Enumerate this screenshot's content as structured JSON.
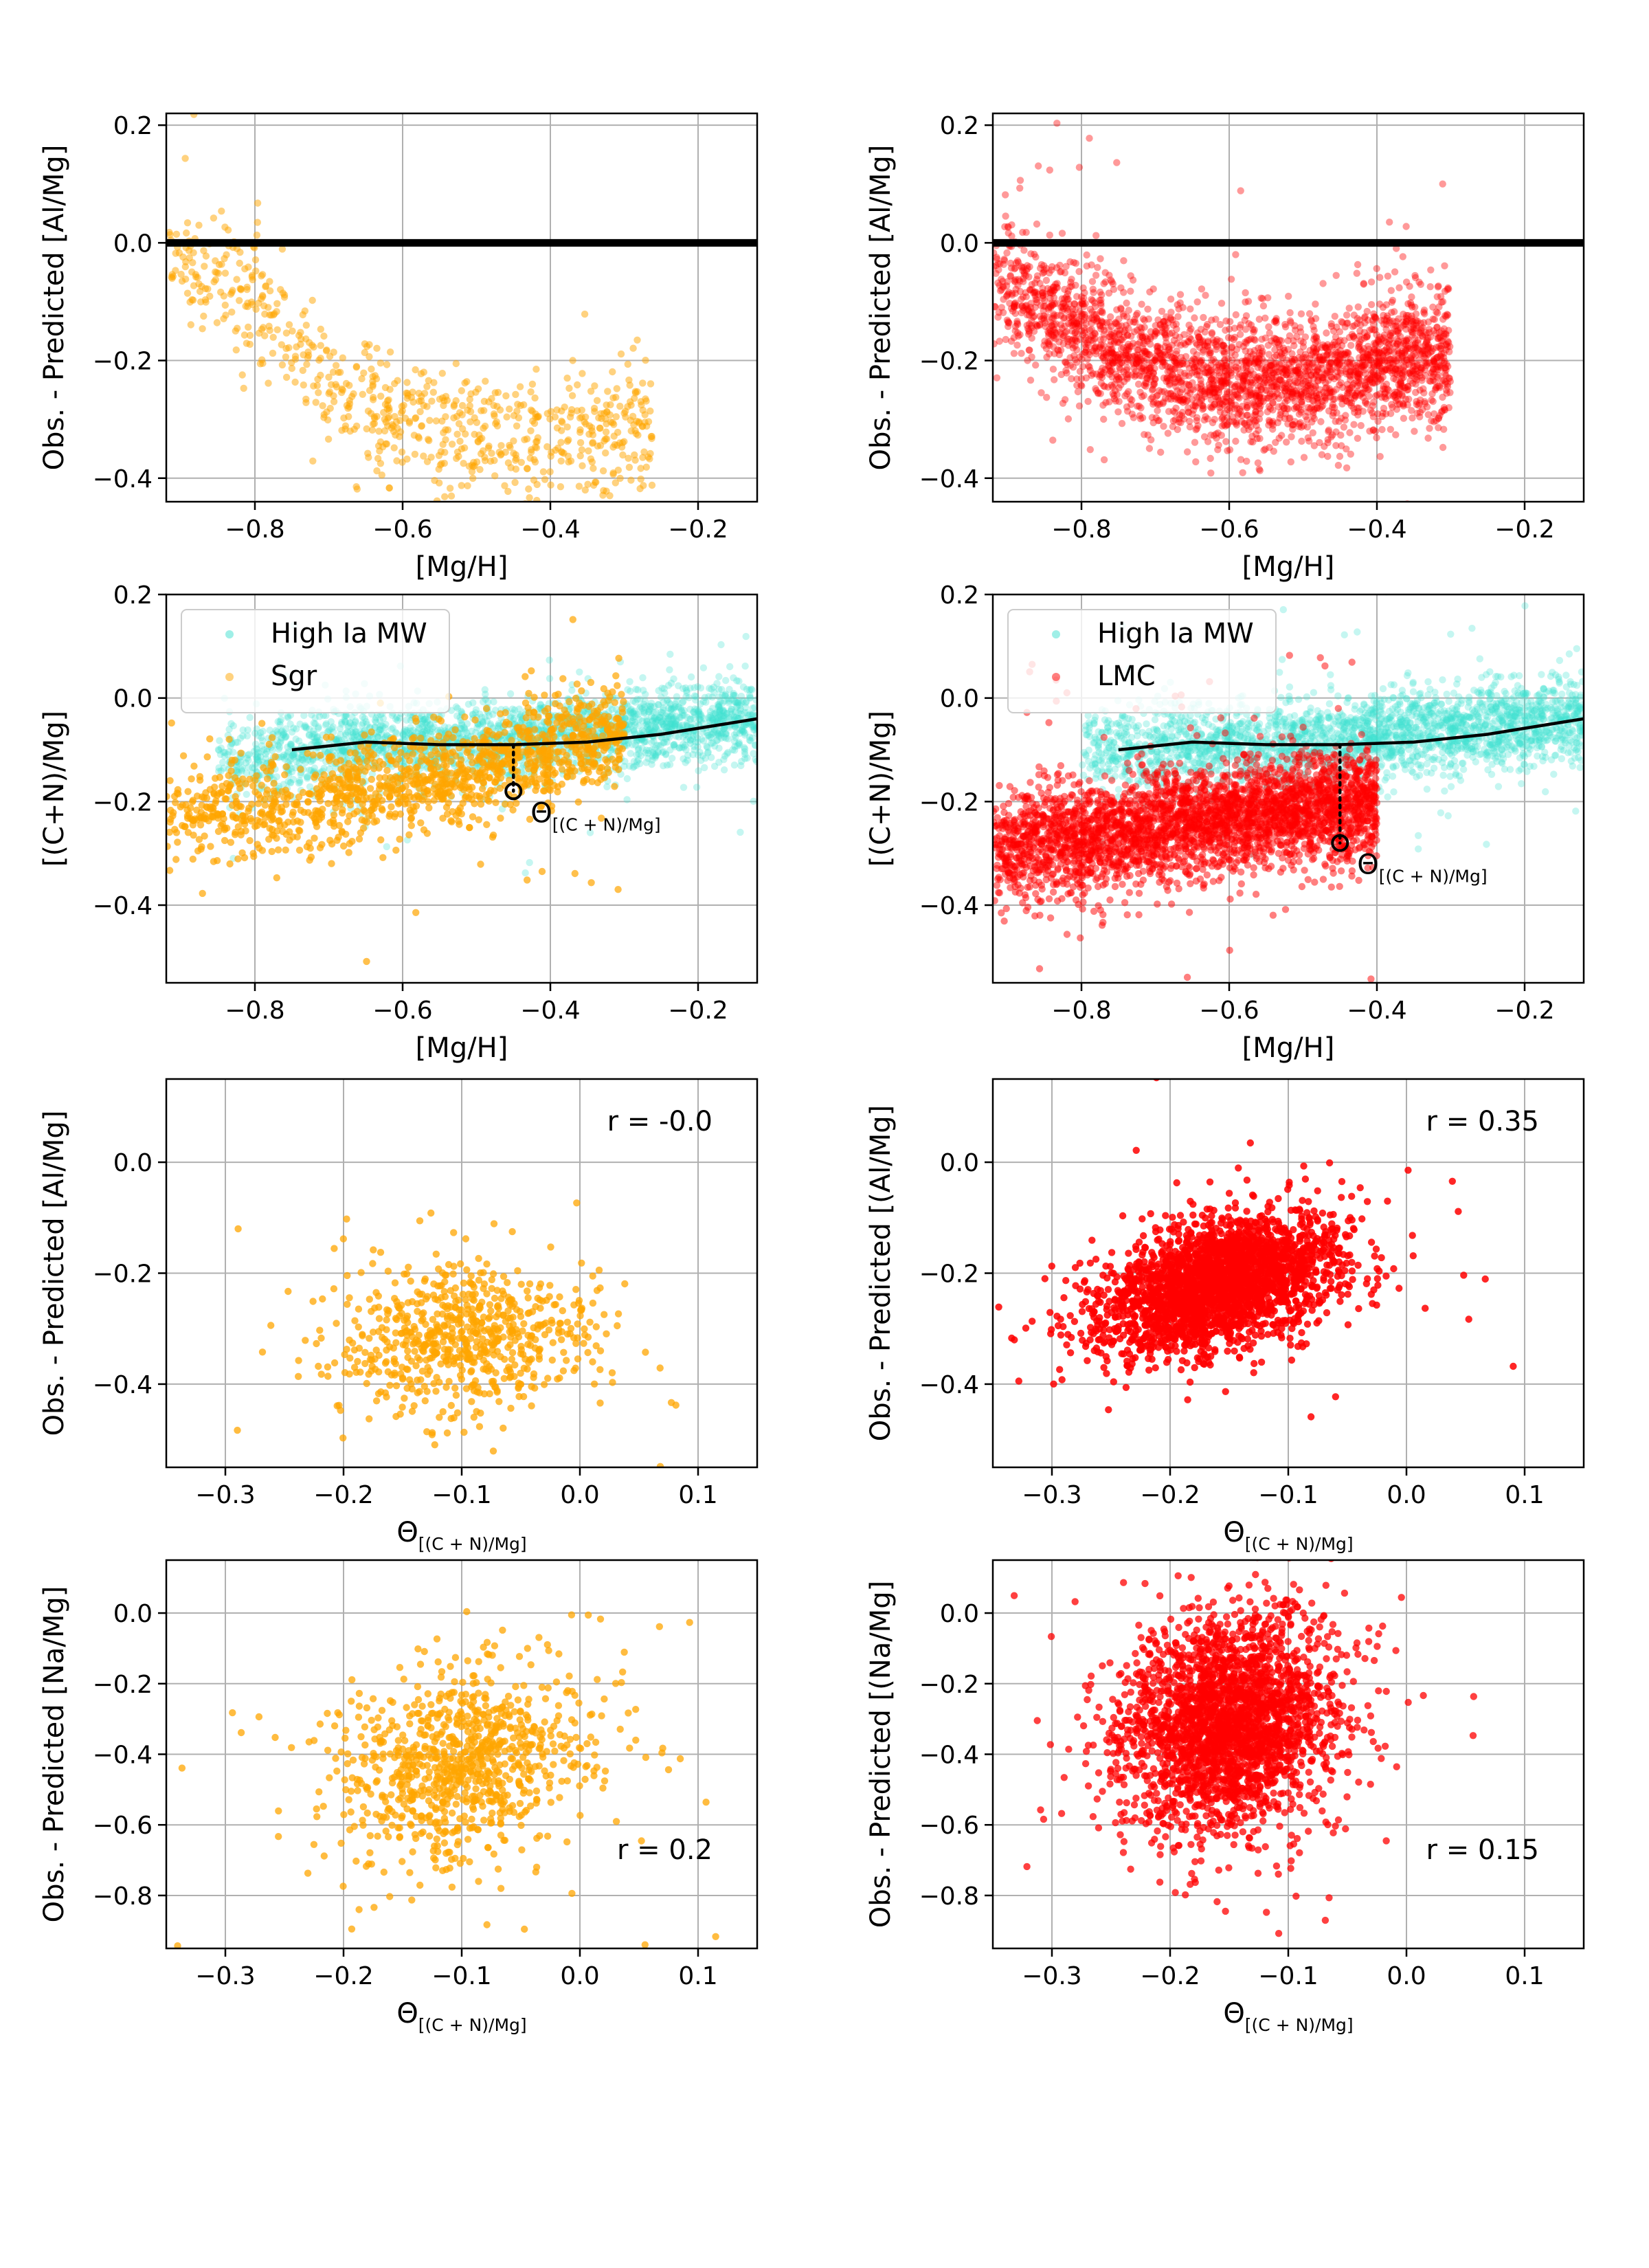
{
  "figure": {
    "rows": 4,
    "cols": 2
  },
  "colors": {
    "sgr": "#ffa500",
    "lmc": "#ff0000",
    "mw": "#40e0d0",
    "trend": "#000000",
    "grid": "#b0b0b0"
  },
  "symbols": {
    "theta": "Θ",
    "theta_sub": "[(C + N)/Mg]"
  },
  "chart_data": [
    {
      "id": "al-vs-mgh-sgr",
      "type": "scatter",
      "xlabel": "[Mg/H]",
      "ylabel": "Obs. - Predicted  [Al/Mg]",
      "xlim": [
        -0.92,
        -0.12
      ],
      "ylim": [
        -0.44,
        0.22
      ],
      "xticks": [
        -0.8,
        -0.6,
        -0.4,
        -0.2
      ],
      "yticks": [
        -0.4,
        -0.2,
        0.0,
        0.2
      ],
      "hline": 0.0,
      "series": [
        {
          "name": "Sgr",
          "color": "#ffa500",
          "n": 750,
          "alpha": 0.5,
          "model": "band",
          "x_range": [
            -0.92,
            -0.26
          ],
          "breakpoints": [
            [
              -0.92,
              -0.03
            ],
            [
              -0.8,
              -0.1
            ],
            [
              -0.7,
              -0.24
            ],
            [
              -0.6,
              -0.3
            ],
            [
              -0.45,
              -0.33
            ],
            [
              -0.3,
              -0.32
            ]
          ],
          "spread": 0.055
        }
      ]
    },
    {
      "id": "al-vs-mgh-lmc",
      "type": "scatter",
      "xlabel": "[Mg/H]",
      "ylabel": "Obs. - Predicted [Al/Mg]",
      "xlim": [
        -0.92,
        -0.12
      ],
      "ylim": [
        -0.44,
        0.22
      ],
      "xticks": [
        -0.8,
        -0.6,
        -0.4,
        -0.2
      ],
      "yticks": [
        -0.4,
        -0.2,
        0.0,
        0.2
      ],
      "hline": 0.0,
      "series": [
        {
          "name": "LMC",
          "color": "#ff0000",
          "n": 2800,
          "alpha": 0.4,
          "model": "band",
          "x_range": [
            -0.92,
            -0.3
          ],
          "breakpoints": [
            [
              -0.92,
              -0.06
            ],
            [
              -0.8,
              -0.15
            ],
            [
              -0.68,
              -0.22
            ],
            [
              -0.55,
              -0.24
            ],
            [
              -0.45,
              -0.22
            ],
            [
              -0.35,
              -0.19
            ]
          ],
          "spread": 0.055
        }
      ]
    },
    {
      "id": "cn-vs-mgh-sgr",
      "type": "scatter",
      "xlabel": "[Mg/H]",
      "ylabel": "[(C+N)/Mg]",
      "xlim": [
        -0.92,
        -0.12
      ],
      "ylim": [
        -0.55,
        0.2
      ],
      "xticks": [
        -0.8,
        -0.6,
        -0.4,
        -0.2
      ],
      "yticks": [
        -0.4,
        -0.2,
        0.0,
        0.2
      ],
      "legend": {
        "loc": "upper-left",
        "entries": [
          {
            "label": "High Ia MW",
            "color": "#40e0d0"
          },
          {
            "label": "Sgr",
            "color": "#ffa500"
          }
        ]
      },
      "trend_line": {
        "x": [
          -0.75,
          -0.65,
          -0.55,
          -0.45,
          -0.35,
          -0.25,
          -0.12
        ],
        "y": [
          -0.1,
          -0.085,
          -0.09,
          -0.09,
          -0.085,
          -0.07,
          -0.04
        ]
      },
      "marker": {
        "x": -0.45,
        "y": -0.18,
        "y_line": -0.09,
        "label": "Θ",
        "label_sub": "[(C + N)/Mg]"
      },
      "series": [
        {
          "name": "High Ia MW",
          "color": "#40e0d0",
          "n": 2400,
          "alpha": 0.3,
          "model": "band",
          "x_range": [
            -0.85,
            -0.12
          ],
          "breakpoints": [
            [
              -0.85,
              -0.12
            ],
            [
              -0.65,
              -0.09
            ],
            [
              -0.45,
              -0.08
            ],
            [
              -0.3,
              -0.06
            ],
            [
              -0.12,
              -0.04
            ]
          ],
          "spread": 0.04
        },
        {
          "name": "Sgr",
          "color": "#ffa500",
          "n": 1300,
          "alpha": 0.7,
          "model": "band",
          "x_range": [
            -0.92,
            -0.3
          ],
          "breakpoints": [
            [
              -0.92,
              -0.23
            ],
            [
              -0.75,
              -0.2
            ],
            [
              -0.6,
              -0.16
            ],
            [
              -0.45,
              -0.12
            ],
            [
              -0.35,
              -0.08
            ]
          ],
          "spread": 0.05
        }
      ]
    },
    {
      "id": "cn-vs-mgh-lmc",
      "type": "scatter",
      "xlabel": "[Mg/H]",
      "ylabel": "[(C+N)/Mg]",
      "xlim": [
        -0.92,
        -0.12
      ],
      "ylim": [
        -0.55,
        0.2
      ],
      "xticks": [
        -0.8,
        -0.6,
        -0.4,
        -0.2
      ],
      "yticks": [
        -0.4,
        -0.2,
        0.0,
        0.2
      ],
      "legend": {
        "loc": "upper-left",
        "entries": [
          {
            "label": "High Ia MW",
            "color": "#40e0d0"
          },
          {
            "label": "LMC",
            "color": "#ff0000"
          }
        ]
      },
      "trend_line": {
        "x": [
          -0.75,
          -0.65,
          -0.55,
          -0.45,
          -0.35,
          -0.25,
          -0.12
        ],
        "y": [
          -0.1,
          -0.085,
          -0.09,
          -0.09,
          -0.085,
          -0.07,
          -0.04
        ]
      },
      "marker": {
        "x": -0.45,
        "y": -0.28,
        "y_line": -0.09,
        "label": "Θ",
        "label_sub": "[(C + N)/Mg]"
      },
      "series": [
        {
          "name": "High Ia MW",
          "color": "#40e0d0",
          "n": 2400,
          "alpha": 0.3,
          "model": "band",
          "x_range": [
            -0.8,
            -0.12
          ],
          "breakpoints": [
            [
              -0.8,
              -0.1
            ],
            [
              -0.6,
              -0.09
            ],
            [
              -0.45,
              -0.08
            ],
            [
              -0.3,
              -0.06
            ],
            [
              -0.12,
              -0.04
            ]
          ],
          "spread": 0.04
        },
        {
          "name": "LMC",
          "color": "#ff0000",
          "n": 3200,
          "alpha": 0.5,
          "model": "band",
          "x_range": [
            -0.92,
            -0.4
          ],
          "breakpoints": [
            [
              -0.92,
              -0.29
            ],
            [
              -0.75,
              -0.26
            ],
            [
              -0.6,
              -0.23
            ],
            [
              -0.45,
              -0.21
            ],
            [
              -0.4,
              -0.2
            ]
          ],
          "spread": 0.05
        }
      ]
    },
    {
      "id": "al-vs-theta-sgr",
      "type": "scatter",
      "xlabel": "Θ",
      "xlabel_sub": "[(C + N)/Mg]",
      "ylabel": "Obs. - Predicted [Al/Mg]",
      "xlim": [
        -0.35,
        0.15
      ],
      "ylim": [
        -0.55,
        0.15
      ],
      "xticks": [
        -0.3,
        -0.2,
        -0.1,
        0.0,
        0.1
      ],
      "yticks": [
        -0.4,
        -0.2,
        0.0
      ],
      "annotation": {
        "text": "r = -0.0",
        "loc": "upper-right"
      },
      "series": [
        {
          "name": "Sgr",
          "color": "#ffa500",
          "n": 700,
          "alpha": 0.75,
          "model": "cloud",
          "center": [
            -0.1,
            -0.32
          ],
          "sd": [
            0.055,
            0.07
          ]
        }
      ]
    },
    {
      "id": "al-vs-theta-lmc",
      "type": "scatter",
      "xlabel": "Θ",
      "xlabel_sub": "[(C + N)/Mg]",
      "ylabel": "Obs. - Predicted [(Al/Mg]",
      "xlim": [
        -0.35,
        0.15
      ],
      "ylim": [
        -0.55,
        0.15
      ],
      "xticks": [
        -0.3,
        -0.2,
        -0.1,
        0.0,
        0.1
      ],
      "yticks": [
        -0.4,
        -0.2,
        0.0
      ],
      "annotation": {
        "text": "r = 0.35",
        "loc": "upper-right"
      },
      "series": [
        {
          "name": "LMC",
          "color": "#ff0000",
          "n": 2600,
          "alpha": 0.85,
          "model": "cloud",
          "center": [
            -0.16,
            -0.22
          ],
          "sd": [
            0.05,
            0.055
          ],
          "slope": 0.55
        }
      ]
    },
    {
      "id": "na-vs-theta-sgr",
      "type": "scatter",
      "xlabel": "Θ",
      "xlabel_sub": "[(C + N)/Mg]",
      "ylabel": "Obs. - Predicted [Na/Mg]",
      "xlim": [
        -0.35,
        0.15
      ],
      "ylim": [
        -0.95,
        0.15
      ],
      "xticks": [
        -0.3,
        -0.2,
        -0.1,
        0.0,
        0.1
      ],
      "yticks": [
        -0.8,
        -0.6,
        -0.4,
        -0.2,
        0.0
      ],
      "annotation": {
        "text": "r = 0.2",
        "loc": "lower-right"
      },
      "series": [
        {
          "name": "Sgr",
          "color": "#ffa500",
          "n": 900,
          "alpha": 0.75,
          "model": "cloud",
          "center": [
            -0.1,
            -0.43
          ],
          "sd": [
            0.055,
            0.14
          ],
          "slope": 0.5
        }
      ]
    },
    {
      "id": "na-vs-theta-lmc",
      "type": "scatter",
      "xlabel": "Θ",
      "xlabel_sub": "[(C + N)/Mg]",
      "ylabel": "Obs. - Predicted [(Na/Mg]",
      "xlim": [
        -0.35,
        0.15
      ],
      "ylim": [
        -0.95,
        0.15
      ],
      "xticks": [
        -0.3,
        -0.2,
        -0.1,
        0.0,
        0.1
      ],
      "yticks": [
        -0.8,
        -0.6,
        -0.4,
        -0.2,
        0.0
      ],
      "annotation": {
        "text": "r = 0.15",
        "loc": "lower-right"
      },
      "series": [
        {
          "name": "LMC",
          "color": "#ff0000",
          "n": 2600,
          "alpha": 0.75,
          "model": "cloud",
          "center": [
            -0.15,
            -0.32
          ],
          "sd": [
            0.045,
            0.15
          ],
          "slope": 0.4
        }
      ]
    }
  ]
}
